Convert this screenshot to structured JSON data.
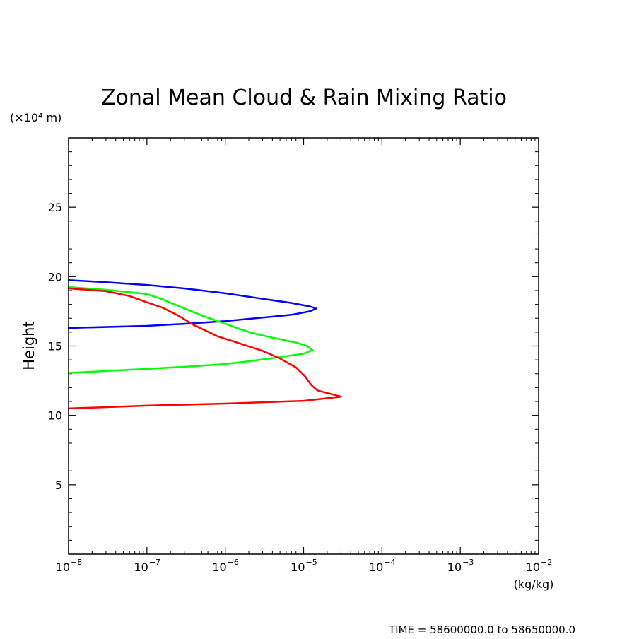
{
  "chart_data": {
    "type": "line",
    "title": "Zonal Mean Cloud & Rain Mixing Ratio",
    "ylabel": "Height",
    "yunit": "(×10⁴ m)",
    "xunit": "(kg/kg)",
    "x_scale": "log",
    "xlim": [
      1e-08,
      0.01
    ],
    "ylim": [
      0,
      30
    ],
    "x_tick_labels": [
      {
        "value": 1e-08,
        "base": "10",
        "exp": "−8"
      },
      {
        "value": 1e-07,
        "base": "10",
        "exp": "−7"
      },
      {
        "value": 1e-06,
        "base": "10",
        "exp": "−6"
      },
      {
        "value": 1e-05,
        "base": "10",
        "exp": "−5"
      },
      {
        "value": 0.0001,
        "base": "10",
        "exp": "−4"
      },
      {
        "value": 0.001,
        "base": "10",
        "exp": "−3"
      },
      {
        "value": 0.01,
        "base": "10",
        "exp": "−2"
      }
    ],
    "y_tick_labels": [
      5,
      10,
      15,
      20,
      25
    ],
    "grid": false,
    "legend": "none",
    "series": [
      {
        "color": "#0000ff",
        "points": [
          [
            1e-08,
            19.75
          ],
          [
            3e-08,
            19.6
          ],
          [
            1e-07,
            19.4
          ],
          [
            3e-07,
            19.15
          ],
          [
            1e-06,
            18.8
          ],
          [
            3e-06,
            18.4
          ],
          [
            7e-06,
            18.1
          ],
          [
            1.2e-05,
            17.85
          ],
          [
            1.45e-05,
            17.7
          ],
          [
            1.2e-05,
            17.5
          ],
          [
            7e-06,
            17.25
          ],
          [
            3e-06,
            17.05
          ],
          [
            1e-06,
            16.8
          ],
          [
            3e-07,
            16.6
          ],
          [
            1e-07,
            16.45
          ],
          [
            1e-08,
            16.3
          ]
        ]
      },
      {
        "color": "#00ff00",
        "points": [
          [
            1e-08,
            19.25
          ],
          [
            3e-08,
            19.05
          ],
          [
            1e-07,
            18.75
          ],
          [
            1.6e-07,
            18.35
          ],
          [
            2.5e-07,
            17.9
          ],
          [
            5e-07,
            17.2
          ],
          [
            1e-06,
            16.6
          ],
          [
            2e-06,
            16.0
          ],
          [
            4e-06,
            15.6
          ],
          [
            8e-06,
            15.25
          ],
          [
            1.1e-05,
            15.0
          ],
          [
            1.3e-05,
            14.7
          ],
          [
            1e-05,
            14.45
          ],
          [
            5e-06,
            14.2
          ],
          [
            2e-06,
            13.9
          ],
          [
            1e-06,
            13.7
          ],
          [
            3e-07,
            13.5
          ],
          [
            1e-07,
            13.35
          ],
          [
            3e-08,
            13.2
          ],
          [
            1e-08,
            13.05
          ]
        ]
      },
      {
        "color": "#ff0000",
        "points": [
          [
            1e-08,
            19.15
          ],
          [
            3e-08,
            18.95
          ],
          [
            6e-08,
            18.6
          ],
          [
            1e-07,
            18.15
          ],
          [
            1.6e-07,
            17.75
          ],
          [
            2.5e-07,
            17.2
          ],
          [
            4e-07,
            16.5
          ],
          [
            8e-07,
            15.7
          ],
          [
            1.5e-06,
            15.2
          ],
          [
            3e-06,
            14.65
          ],
          [
            5e-06,
            14.1
          ],
          [
            8e-06,
            13.45
          ],
          [
            1.05e-05,
            12.8
          ],
          [
            1.25e-05,
            12.2
          ],
          [
            1.5e-05,
            11.8
          ],
          [
            3e-05,
            11.35
          ],
          [
            1e-05,
            11.05
          ],
          [
            1e-06,
            10.85
          ],
          [
            1e-07,
            10.7
          ],
          [
            1e-08,
            10.5
          ]
        ]
      }
    ]
  },
  "footer": {
    "time_text": "TIME = 58600000.0 to 58650000.0"
  }
}
